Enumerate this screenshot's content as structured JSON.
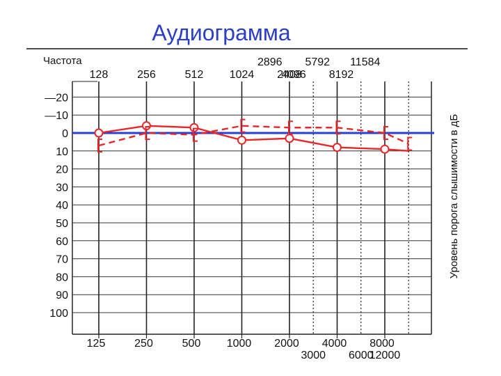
{
  "chart_data": {
    "type": "line",
    "title": "Аудиограмма",
    "xlabel": "Частота",
    "ylabel": "Уровень порога слышимости в дБ",
    "top_major_labels": [
      "128",
      "256",
      "512",
      "1024",
      "2408"
    ],
    "top_minor_labels": [
      {
        "text": "2896",
        "row": 0,
        "at": 3.5
      },
      {
        "text": "5792",
        "row": 0,
        "at": 4.5
      },
      {
        "text": "11584",
        "row": 0,
        "at": 5.5
      },
      {
        "text": "4096",
        "row": 1,
        "at": 4
      },
      {
        "text": "8192",
        "row": 1,
        "at": 5
      }
    ],
    "bottom_major_labels": [
      "125",
      "250",
      "500",
      "1000",
      "2000",
      "4000",
      "8000"
    ],
    "bottom_minor_labels": [
      {
        "text": "3000",
        "at": 4.5
      },
      {
        "text": "6000",
        "at": 5.5
      },
      {
        "text": "12000",
        "at": 6
      }
    ],
    "y_ticks": [
      -20,
      -10,
      0,
      10,
      20,
      30,
      40,
      50,
      60,
      70,
      80,
      90,
      100
    ],
    "y_tick_labels": [
      "—20",
      "—10",
      "0",
      "10",
      "20",
      "30",
      "40",
      "50",
      "60",
      "70",
      "80",
      "90",
      "100"
    ],
    "ylim": [
      -20,
      100
    ],
    "y_inverted": true,
    "x_positions": [
      0,
      1,
      2,
      3,
      4,
      5,
      6
    ],
    "dotted_lines_at": [
      4.5,
      5.5,
      6.5
    ],
    "reference_line": {
      "y": 0,
      "color": "#2540d8"
    },
    "series": [
      {
        "marker": "circle",
        "style": "solid",
        "color": "#e8262a",
        "points": [
          [
            0,
            0
          ],
          [
            1,
            -4
          ],
          [
            2,
            -3
          ],
          [
            3,
            4
          ],
          [
            4,
            3
          ],
          [
            5,
            8
          ],
          [
            6,
            9
          ],
          [
            6.5,
            10
          ]
        ]
      },
      {
        "marker": "bracket",
        "style": "dashed",
        "color": "#e8262a",
        "points": [
          [
            0,
            7
          ],
          [
            1,
            0
          ],
          [
            2,
            1
          ],
          [
            3,
            -4
          ],
          [
            4,
            -3
          ],
          [
            5,
            -3
          ],
          [
            6,
            0
          ],
          [
            6.5,
            6
          ]
        ]
      }
    ]
  }
}
